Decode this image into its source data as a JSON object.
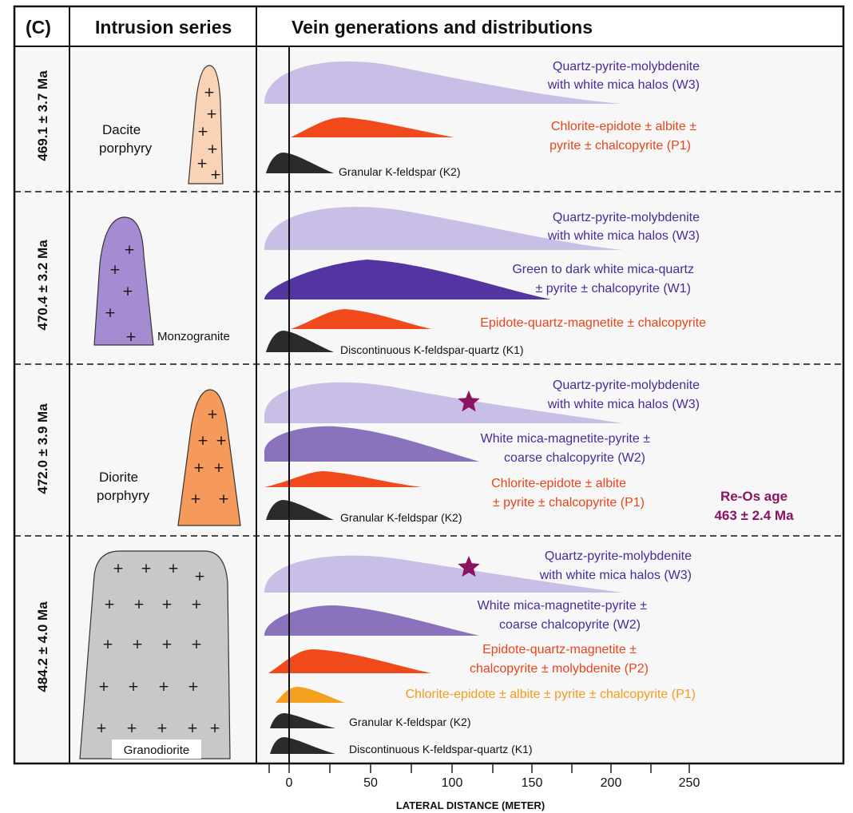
{
  "header": {
    "panel_label": "(C)",
    "col1_title": "Intrusion series",
    "col2_title": "Vein generations and distributions"
  },
  "colors": {
    "w3_light_purple": "#c9bee6",
    "w1_dark_purple": "#5434a0",
    "w2_mid_purple": "#8a73bd",
    "red_orange": "#f04a1c",
    "orange": "#f3a01e",
    "black": "#2b2b2b",
    "purple_text": "#4a2a9a",
    "red_text": "#e8441a",
    "orange_text": "#f59a1a",
    "reos_text": "#8b1461"
  },
  "rows": [
    {
      "age": "469.1 ± 3.7 Ma",
      "intrusion_lines": [
        "Dacite",
        "porphyry"
      ],
      "intrusion_color": "#fad3b6",
      "veins": [
        {
          "id": "W3",
          "lines": [
            "Quartz-pyrite-molybdenite",
            "with white mica halos (W3)"
          ],
          "color": "#c9bee6",
          "text_color": "#4a2a9a",
          "range_m": [
            -10,
            205
          ]
        },
        {
          "id": "P1",
          "lines": [
            "Chlorite-epidote ± albite ±",
            "pyrite ± chalcopyrite (P1)"
          ],
          "color": "#f04a1c",
          "text_color": "#e8441a",
          "range_m": [
            0,
            100
          ]
        },
        {
          "id": "K2",
          "lines": [
            "Granular K-feldspar  (K2)"
          ],
          "color": "#2b2b2b",
          "text_color": "#111111",
          "range_m": [
            -10,
            25
          ]
        }
      ]
    },
    {
      "age": "470.4 ± 3.2 Ma",
      "intrusion_lines": [
        "Monzogranite"
      ],
      "intrusion_color": "#a58bd1",
      "veins": [
        {
          "id": "W3",
          "lines": [
            "Quartz-pyrite-molybdenite",
            "with white mica halos (W3)"
          ],
          "color": "#c9bee6",
          "text_color": "#4a2a9a",
          "range_m": [
            -10,
            205
          ]
        },
        {
          "id": "W1",
          "lines": [
            "Green to dark white mica-quartz",
            "± pyrite ± chalcopyrite (W1)"
          ],
          "color": "#5434a0",
          "text_color": "#4a2a9a",
          "range_m": [
            -10,
            160
          ]
        },
        {
          "id": "P1",
          "lines": [
            "Epidote-quartz-magnetite ± chalcopyrite"
          ],
          "color": "#f04a1c",
          "text_color": "#e8441a",
          "range_m": [
            0,
            85
          ]
        },
        {
          "id": "K1",
          "lines": [
            "Discontinuous K-feldspar-quartz  (K1)"
          ],
          "color": "#2b2b2b",
          "text_color": "#111111",
          "range_m": [
            -10,
            25
          ]
        }
      ]
    },
    {
      "age": "472.0 ± 3.9 Ma",
      "intrusion_lines": [
        "Diorite",
        "porphyry"
      ],
      "intrusion_color": "#f59a5a",
      "veins": [
        {
          "id": "W3",
          "lines": [
            "Quartz-pyrite-molybdenite",
            "with white mica halos (W3)"
          ],
          "color": "#c9bee6",
          "text_color": "#4a2a9a",
          "range_m": [
            -10,
            205
          ]
        },
        {
          "id": "W2",
          "lines": [
            "White mica-magnetite-pyrite ±",
            "coarse chalcopyrite (W2)"
          ],
          "color": "#8a73bd",
          "text_color": "#4a2a9a",
          "range_m": [
            -10,
            115
          ]
        },
        {
          "id": "P1",
          "lines": [
            "Chlorite-epidote ± albite",
            "± pyrite ± chalcopyrite (P1)"
          ],
          "color": "#f04a1c",
          "text_color": "#e8441a",
          "range_m": [
            -10,
            80
          ]
        },
        {
          "id": "K2",
          "lines": [
            "Granular K-feldspar  (K2)"
          ],
          "color": "#2b2b2b",
          "text_color": "#111111",
          "range_m": [
            -10,
            25
          ]
        }
      ]
    },
    {
      "age": "484.2 ± 4.0 Ma",
      "intrusion_lines": [
        "Granodiorite"
      ],
      "intrusion_color": "#c8c8c8",
      "veins": [
        {
          "id": "W3",
          "lines": [
            "Quartz-pyrite-molybdenite",
            "with white mica halos (W3)"
          ],
          "color": "#c9bee6",
          "text_color": "#4a2a9a",
          "range_m": [
            -10,
            205
          ]
        },
        {
          "id": "W2",
          "lines": [
            "White mica-magnetite-pyrite ±",
            "coarse chalcopyrite (W2)"
          ],
          "color": "#8a73bd",
          "text_color": "#4a2a9a",
          "range_m": [
            -10,
            115
          ]
        },
        {
          "id": "P2",
          "lines": [
            "Epidote-quartz-magnetite ±",
            "chalcopyrite ± molybdenite (P2)"
          ],
          "color": "#f04a1c",
          "text_color": "#e8441a",
          "range_m": [
            -10,
            85
          ]
        },
        {
          "id": "P1",
          "lines": [
            "Chlorite-epidote ± albite ± pyrite ± chalcopyrite (P1)"
          ],
          "color": "#f3a01e",
          "text_color": "#f59a1a",
          "range_m": [
            -10,
            35
          ]
        },
        {
          "id": "K2",
          "lines": [
            "Granular K-feldspar  (K2)"
          ],
          "color": "#2b2b2b",
          "text_color": "#111111",
          "range_m": [
            -10,
            25
          ]
        },
        {
          "id": "K1",
          "lines": [
            "Discontinuous K-feldspar-quartz  (K1)"
          ],
          "color": "#2b2b2b",
          "text_color": "#111111",
          "range_m": [
            -10,
            25
          ]
        }
      ]
    }
  ],
  "reos": {
    "line1": "Re-Os age",
    "line2": "463 ± 2.4 Ma",
    "color": "#8b1461"
  },
  "axis": {
    "label": "LATERAL DISTANCE (METER)",
    "ticks": [
      "0",
      "50",
      "100",
      "150",
      "200",
      "250"
    ]
  }
}
